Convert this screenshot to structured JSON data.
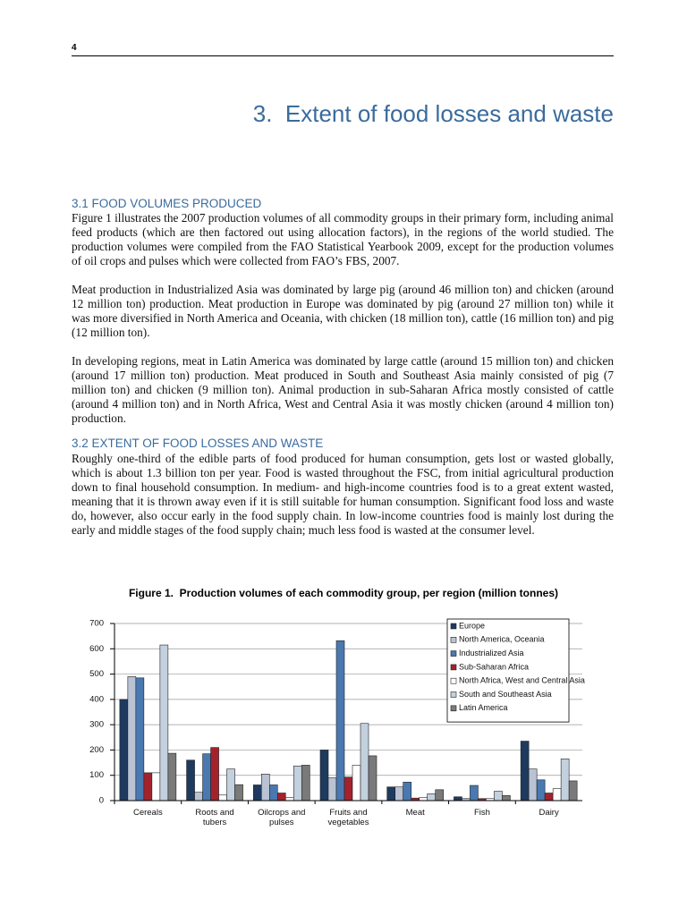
{
  "page_number": "4",
  "chapter_title": "3.  Extent of food losses and waste",
  "sections": [
    {
      "heading": "3.1 FOOD VOLUMES PRODUCED",
      "paragraphs": [
        "Figure 1 illustrates the 2007 production volumes of all commodity groups in their primary form, including animal feed products (which are then factored out using allocation factors), in the regions of the world studied. The production volumes were compiled from the FAO Statistical Yearbook 2009, except for the production volumes of oil crops and pulses which were collected from FAO’s FBS, 2007.",
        "Meat production in Industrialized Asia was dominated by large pig (around 46 million ton) and chicken (around 12 million ton) production. Meat production in Europe was dominated by pig (around 27 million ton) while it was more diversified in North America and Oceania, with chicken (18 million ton), cattle (16 million ton) and pig (12 million ton).",
        "In developing regions, meat in Latin America was dominated by large cattle (around 15 million ton) and chicken (around 17 million ton) production. Meat produced in South and Southeast Asia mainly consisted of pig (7 million ton) and chicken (9 million ton). Animal production in sub-Saharan Africa mostly consisted of cattle (around 4 million ton) and in North Africa, West and Central Asia it was mostly chicken (around 4 million ton) production."
      ]
    },
    {
      "heading": "3.2 EXTENT OF FOOD LOSSES AND WASTE",
      "paragraphs": [
        "Roughly one-third of the edible parts of food produced for human consumption, gets lost or wasted globally, which is about 1.3 billion ton per year. Food is wasted throughout the FSC, from initial agricultural production down to final household consumption. In medium- and high-income countries food is to a great extent wasted, meaning that it is thrown away even if it is still suitable for human consumption. Significant food loss and waste do, however, also occur early in the food supply chain. In low-income countries food is mainly lost during the early and middle stages of the food supply chain; much less food is wasted at the consumer level."
      ]
    }
  ],
  "chart_data": {
    "type": "bar",
    "title": "Figure 1.  Production volumes of each commodity group, per region (million tonnes)",
    "categories": [
      "Cereals",
      "Roots and tubers",
      "Oilcrops and pulses",
      "Fruits and vegetables",
      "Meat",
      "Fish",
      "Dairy"
    ],
    "series": [
      {
        "name": "Europe",
        "color": "#1f3a5f",
        "values": [
          400,
          160,
          62,
          200,
          54,
          15,
          235
        ]
      },
      {
        "name": "North America, Oceania",
        "color": "#b9c3d3",
        "values": [
          490,
          33,
          105,
          90,
          54,
          8,
          125
        ]
      },
      {
        "name": "Industrialized Asia",
        "color": "#4a78b0",
        "values": [
          485,
          185,
          62,
          632,
          73,
          60,
          82
        ]
      },
      {
        "name": "Sub-Saharan Africa",
        "color": "#a3222c",
        "values": [
          110,
          210,
          30,
          93,
          10,
          8,
          30
        ]
      },
      {
        "name": "North Africa, West and Central Asia",
        "color": "#ffffff",
        "values": [
          110,
          22,
          12,
          140,
          12,
          8,
          47
        ]
      },
      {
        "name": "South and Southeast Asia",
        "color": "#c3d0de",
        "values": [
          615,
          125,
          137,
          305,
          27,
          37,
          165
        ]
      },
      {
        "name": "Latin America",
        "color": "#7a7a7a",
        "values": [
          187,
          63,
          140,
          177,
          43,
          20,
          78
        ]
      }
    ],
    "ylim": [
      0,
      700
    ],
    "yticks": [
      0,
      100,
      200,
      300,
      400,
      500,
      600,
      700
    ],
    "grid": true,
    "legend": "upper right"
  }
}
